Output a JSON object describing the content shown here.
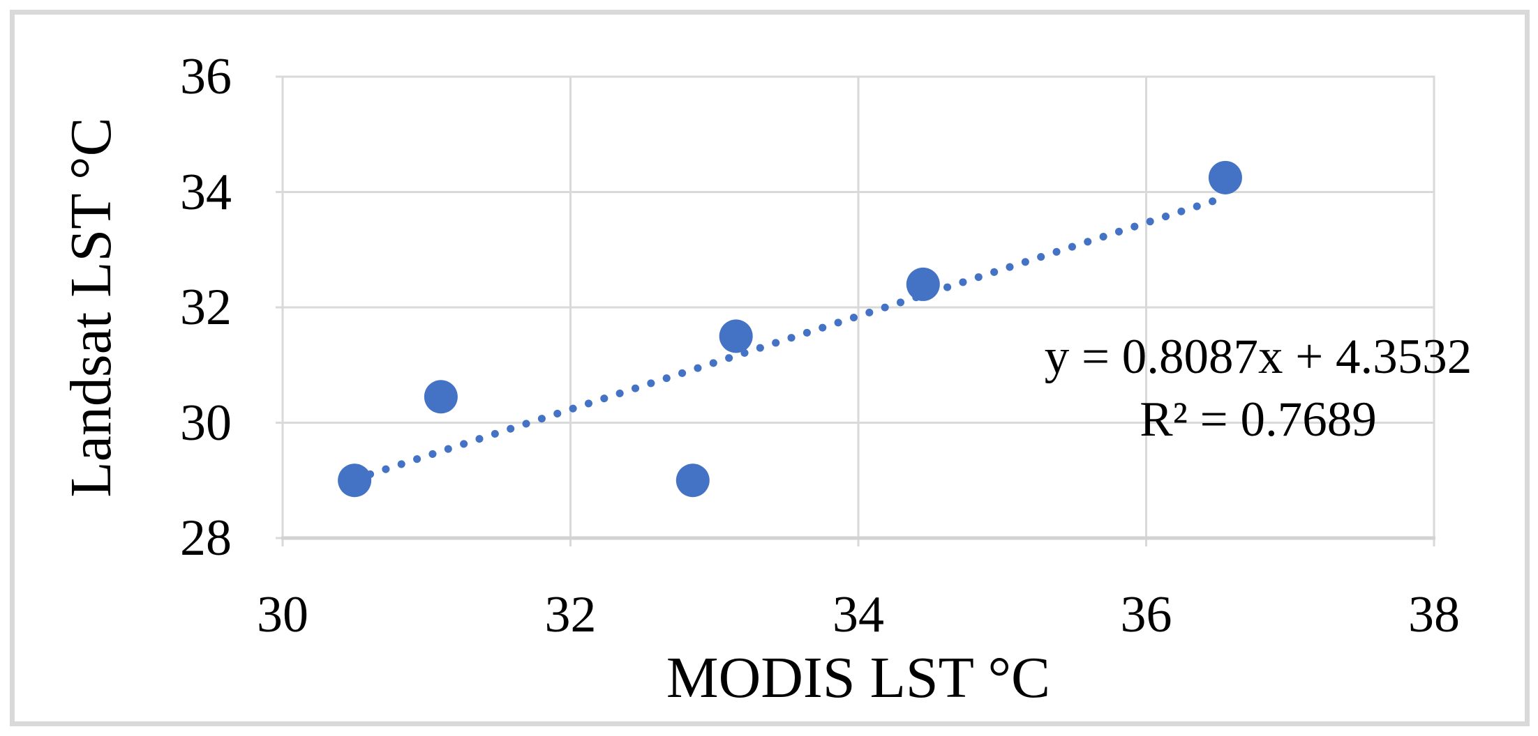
{
  "figure": {
    "background": "#FFFFFF",
    "border_color": "#D9D9D9"
  },
  "chart_data": {
    "type": "scatter",
    "title": "",
    "xlabel": "MODIS LST °C",
    "ylabel": "Landsat LST °C",
    "xlim": [
      30,
      38
    ],
    "ylim": [
      28,
      36
    ],
    "xticks": [
      "30",
      "32",
      "34",
      "36",
      "38"
    ],
    "yticks": [
      "28",
      "30",
      "32",
      "34",
      "36"
    ],
    "grid": "both",
    "gridline_color": "#D9D9D9",
    "axisline_color": "#D2D2D2",
    "marker_color": "#4472C4",
    "marker_radius_px": 24,
    "points": [
      {
        "x": 30.5,
        "y": 29.0
      },
      {
        "x": 31.1,
        "y": 30.45
      },
      {
        "x": 32.85,
        "y": 29.0
      },
      {
        "x": 33.15,
        "y": 31.5
      },
      {
        "x": 34.45,
        "y": 32.4
      },
      {
        "x": 36.55,
        "y": 34.25
      }
    ],
    "trendline": {
      "style": "dotted",
      "color": "#4472C4",
      "slope": 0.8087,
      "intercept": 4.3532,
      "x_start": 30.5,
      "x_end": 36.55,
      "equation_label": "y = 0.8087x + 4.3532",
      "r2_label": "R² = 0.7689"
    }
  }
}
